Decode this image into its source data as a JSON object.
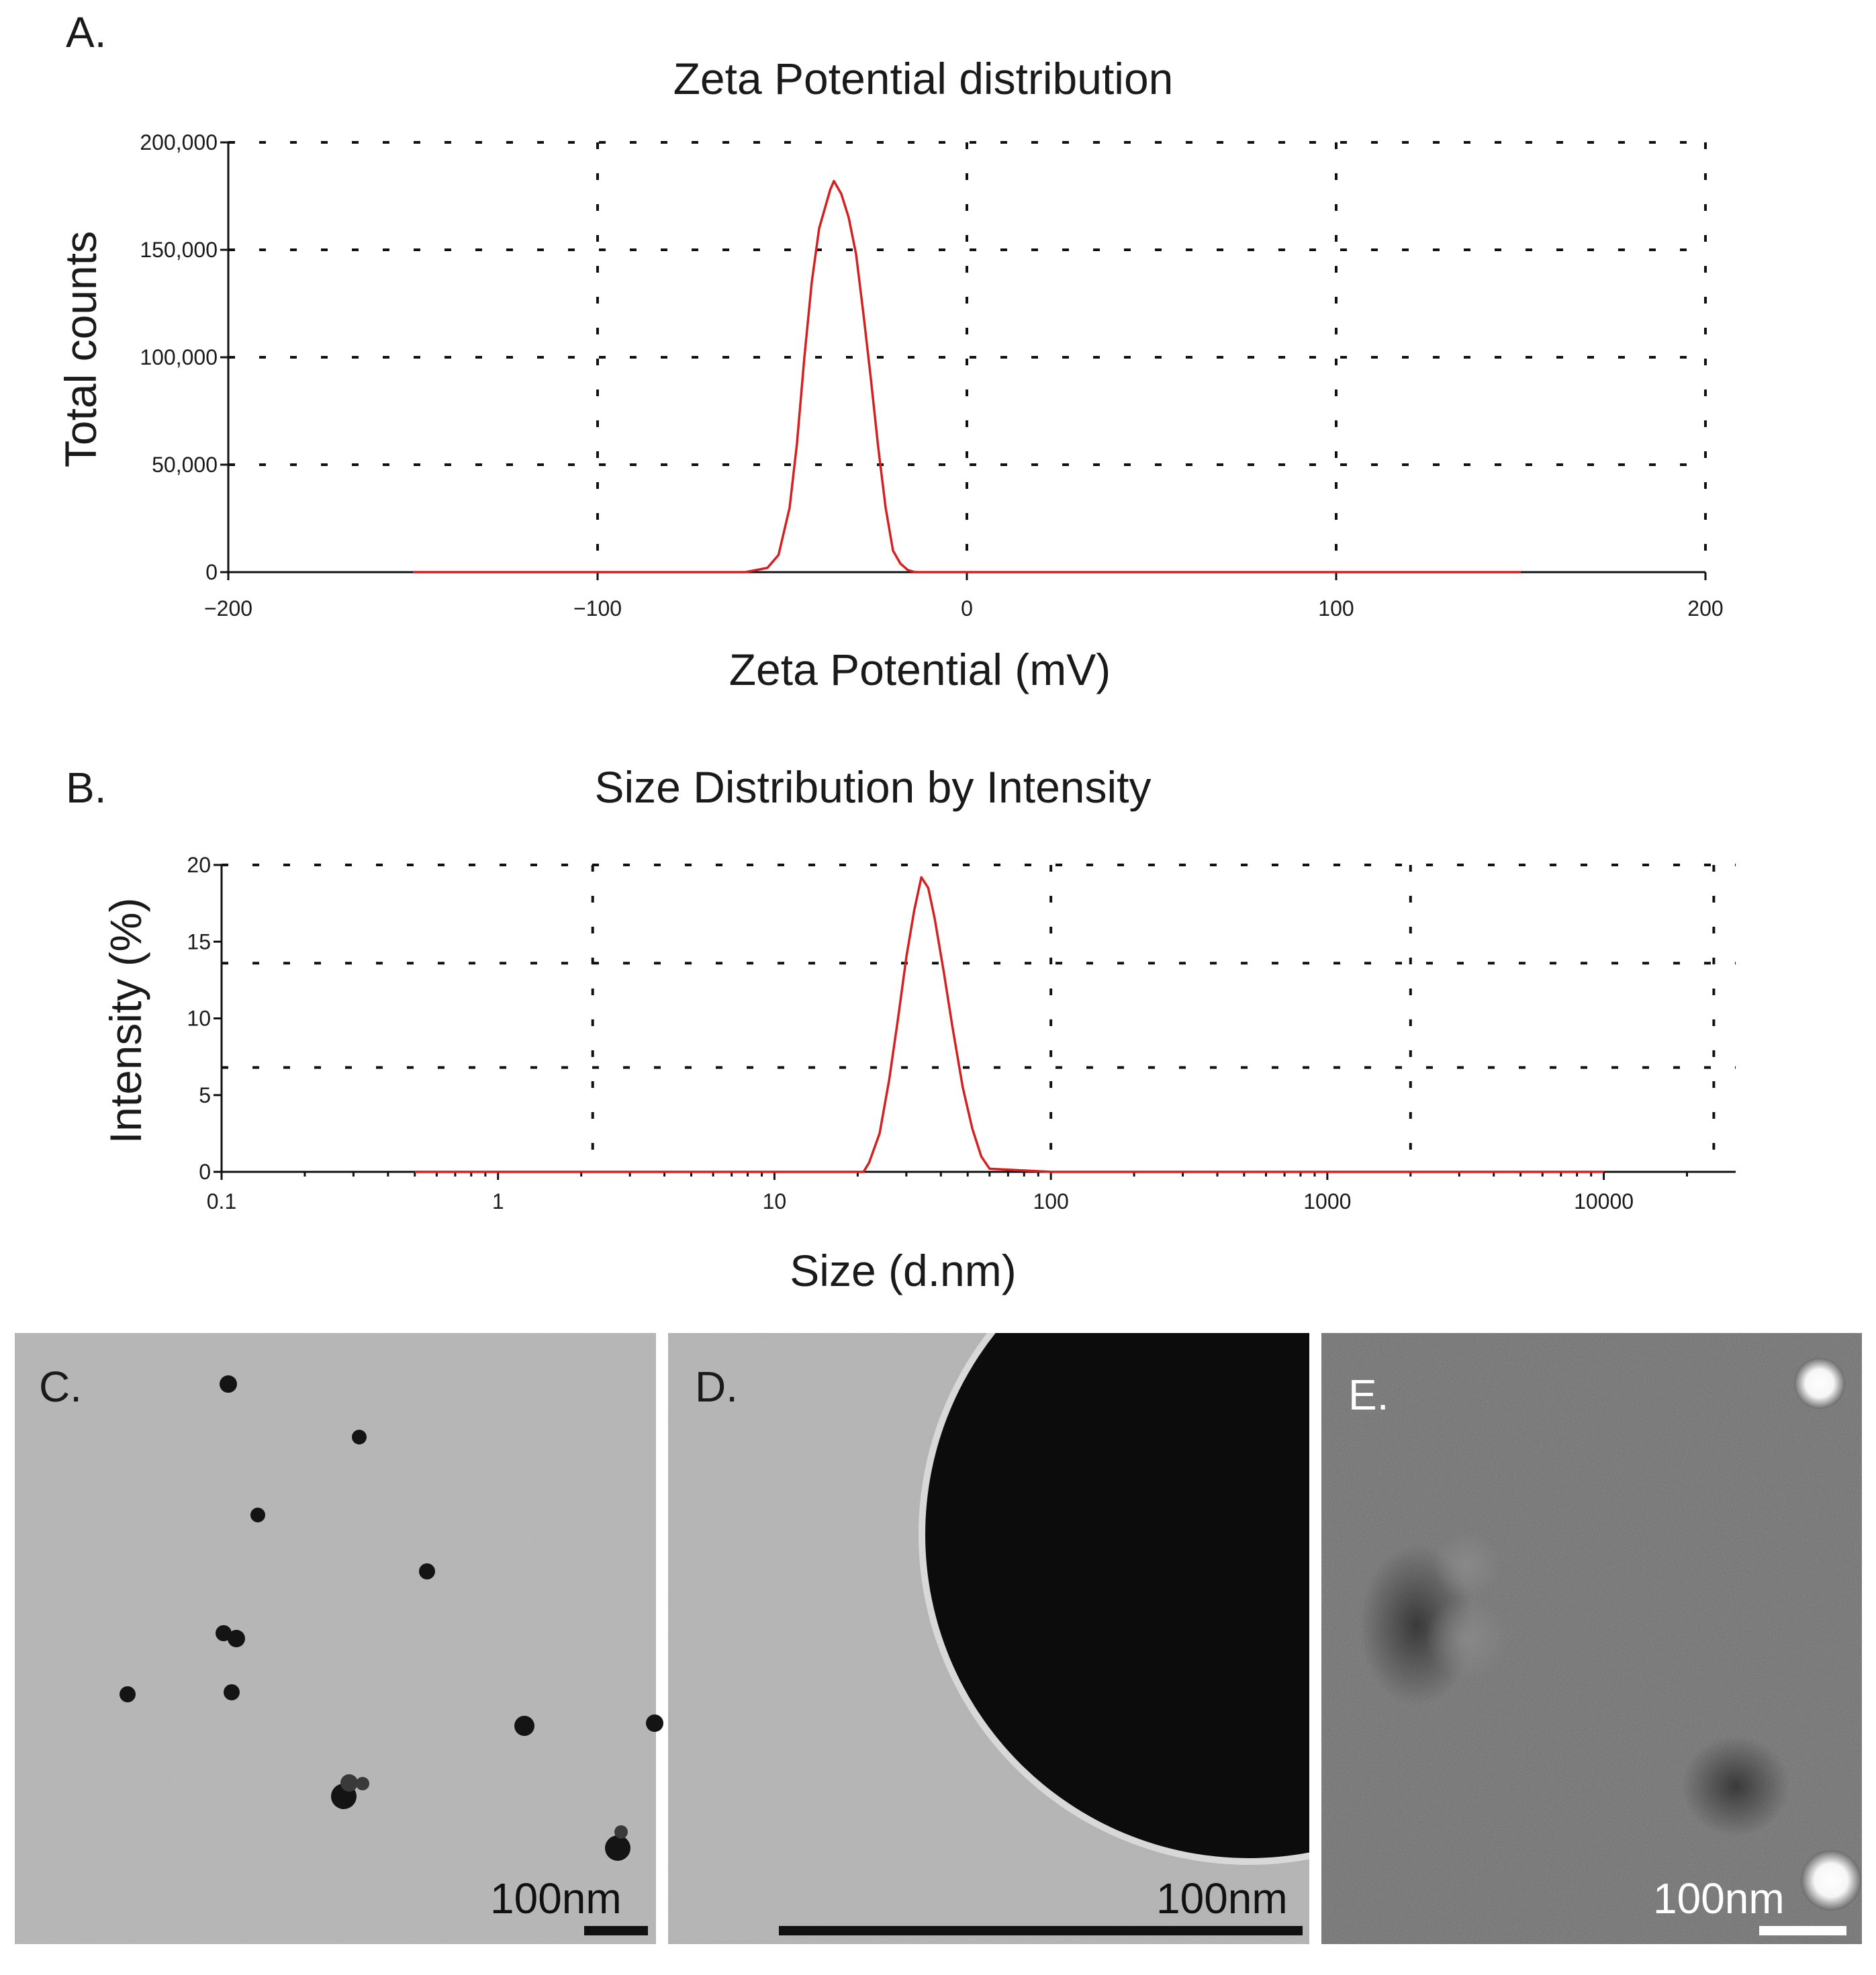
{
  "chart_data": [
    {
      "panel_label": "A.",
      "type": "line",
      "title": "Zeta Potential distribution",
      "xlabel": "Zeta Potential (mV)",
      "ylabel": "Total counts",
      "xlim": [
        -200,
        200
      ],
      "ylim": [
        0,
        200000
      ],
      "x_ticks": [
        -200,
        -100,
        0,
        100,
        200
      ],
      "x_tick_labels": [
        "−200",
        "−100",
        "0",
        "100",
        "200"
      ],
      "y_ticks": [
        0,
        50000,
        100000,
        150000,
        200000
      ],
      "y_tick_labels": [
        "0",
        "50,000",
        "100,000",
        "150,000",
        "200,000"
      ],
      "log_x": false,
      "grid": true,
      "series_color": "#d42020",
      "series": [
        {
          "x": [
            -150,
            -100,
            -60,
            -54,
            -51,
            -48,
            -46,
            -44,
            -42,
            -40,
            -38,
            -37,
            -36,
            -34,
            -32,
            -30,
            -28,
            -26,
            -24,
            -22,
            -20,
            -18,
            -16,
            -14,
            0,
            50,
            100,
            150
          ],
          "y": [
            0,
            0,
            0,
            2000,
            8000,
            30000,
            60000,
            100000,
            135000,
            160000,
            172000,
            178000,
            182000,
            176000,
            165000,
            148000,
            120000,
            90000,
            58000,
            30000,
            10000,
            4000,
            1000,
            0,
            0,
            0,
            0,
            0
          ]
        }
      ]
    },
    {
      "panel_label": "B.",
      "type": "line",
      "title": "Size Distribution by Intensity",
      "xlabel": "Size (d.nm)",
      "ylabel": "Intensity (%)",
      "xlim": [
        0.1,
        30000
      ],
      "ylim": [
        0,
        20
      ],
      "x_ticks": [
        0.1,
        1,
        10,
        100,
        1000,
        10000
      ],
      "x_tick_labels": [
        "0.1",
        "1",
        "10",
        "100",
        "1000",
        "10000"
      ],
      "y_ticks": [
        0,
        5,
        10,
        15,
        20
      ],
      "y_tick_labels": [
        "0",
        "5",
        "10",
        "15",
        "20"
      ],
      "log_x": true,
      "grid": true,
      "series_color": "#d42020",
      "series": [
        {
          "x": [
            0.5,
            1,
            5,
            10,
            18,
            21,
            22,
            24,
            26,
            28,
            30,
            32,
            34,
            36,
            38,
            41,
            44,
            48,
            52,
            56,
            60,
            100,
            1000,
            10000
          ],
          "y": [
            0,
            0,
            0,
            0,
            0,
            0,
            0.6,
            2.5,
            6,
            10,
            14,
            17,
            19.2,
            18.5,
            16.5,
            13,
            9.5,
            5.5,
            2.8,
            1,
            0.2,
            0,
            0,
            0
          ]
        }
      ]
    }
  ],
  "micrographs": [
    {
      "panel_label": "C.",
      "scale_label": "100nm"
    },
    {
      "panel_label": "D.",
      "scale_label": "100nm"
    },
    {
      "panel_label": "E.",
      "scale_label": "100nm"
    }
  ]
}
